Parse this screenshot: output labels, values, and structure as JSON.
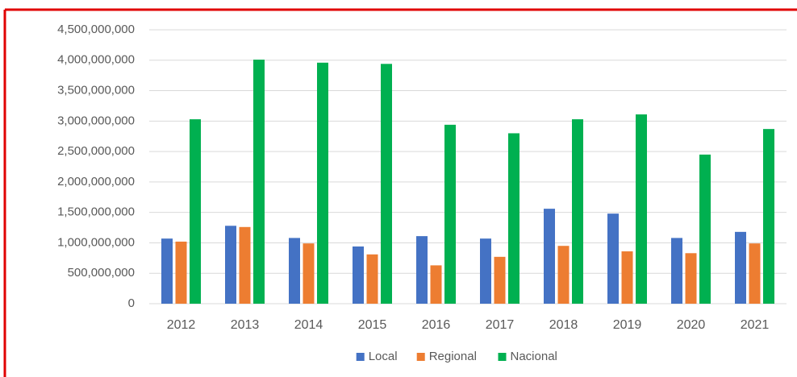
{
  "chart_data": {
    "type": "bar",
    "categories": [
      "2012",
      "2013",
      "2014",
      "2015",
      "2016",
      "2017",
      "2018",
      "2019",
      "2020",
      "2021"
    ],
    "series": [
      {
        "name": "Local",
        "color": "#4472c4",
        "values": [
          1070000000,
          1280000000,
          1080000000,
          940000000,
          1110000000,
          1070000000,
          1560000000,
          1480000000,
          1080000000,
          1180000000
        ]
      },
      {
        "name": "Regional",
        "color": "#ed7d31",
        "values": [
          1020000000,
          1260000000,
          990000000,
          810000000,
          630000000,
          770000000,
          950000000,
          860000000,
          830000000,
          990000000
        ]
      },
      {
        "name": "Nacional",
        "color": "#00b050",
        "values": [
          3030000000,
          4010000000,
          3960000000,
          3940000000,
          2940000000,
          2800000000,
          3030000000,
          3110000000,
          2450000000,
          2870000000
        ]
      }
    ],
    "ylim": [
      0,
      4500000000
    ],
    "yticks": [
      0,
      {
        "value": 500000000,
        "label": "500,000,000"
      },
      {
        "value": 1000000000,
        "label": "1,000,000,000"
      },
      {
        "value": 1500000000,
        "label": "1,500,000,000"
      },
      {
        "value": 2000000000,
        "label": "2,000,000,000"
      },
      {
        "value": 2500000000,
        "label": "2,500,000,000"
      },
      {
        "value": 3000000000,
        "label": "3,000,000,000"
      },
      {
        "value": 3500000000,
        "label": "3,500,000,000"
      },
      {
        "value": 4000000000,
        "label": "4,000,000,000"
      },
      {
        "value": 4500000000,
        "label": "4,500,000,000"
      }
    ],
    "grid": true,
    "legend": "bottom"
  }
}
